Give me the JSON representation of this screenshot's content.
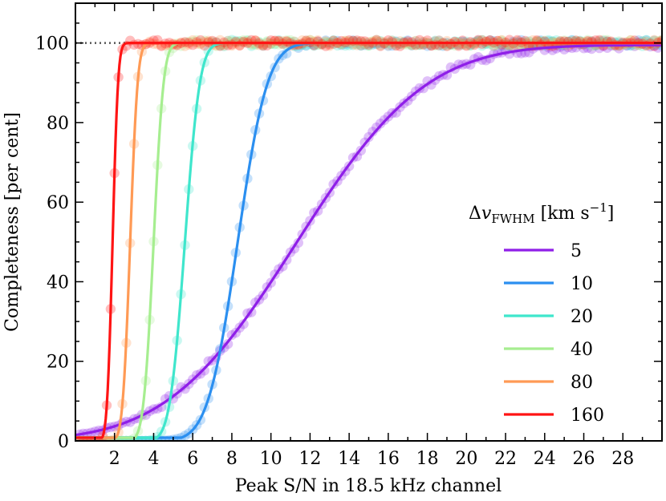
{
  "chart_data": {
    "type": "line",
    "xlabel": "Peak S/N in 18.5 kHz channel",
    "ylabel": "Completeness [per cent]",
    "xlim": [
      0,
      30
    ],
    "ylim": [
      0,
      110
    ],
    "xticks": [
      2,
      4,
      6,
      8,
      10,
      12,
      14,
      16,
      18,
      20,
      22,
      24,
      26,
      28
    ],
    "yticks": [
      0,
      20,
      40,
      60,
      80,
      100
    ],
    "legend": {
      "title": "Δv_FWHM [km s^-1]",
      "title_main": "Δ",
      "title_italic": "v",
      "title_sub": "FWHM",
      "title_rest": " [km s",
      "title_sup": "−1",
      "title_close": "]",
      "placement": "center-right"
    },
    "reference_line": {
      "y": 100,
      "style": "dotted",
      "color": "#555555"
    },
    "series": [
      {
        "name": "5",
        "color": "#8f1fe8",
        "width": 5.2,
        "mid": 11.3,
        "sat": 99.5
      },
      {
        "name": "10",
        "color": "#2b8ff0",
        "width": 1.2,
        "mid": 8.3,
        "sat": 100
      },
      {
        "name": "20",
        "color": "#3fe6cc",
        "width": 0.6,
        "mid": 5.6,
        "sat": 100
      },
      {
        "name": "40",
        "color": "#a6ee90",
        "width": 0.4,
        "mid": 4.0,
        "sat": 100
      },
      {
        "name": "80",
        "color": "#ff9a55",
        "width": 0.3,
        "mid": 2.8,
        "sat": 100
      },
      {
        "name": "160",
        "color": "#ff1414",
        "width": 0.22,
        "mid": 1.9,
        "sat": 100
      }
    ]
  }
}
